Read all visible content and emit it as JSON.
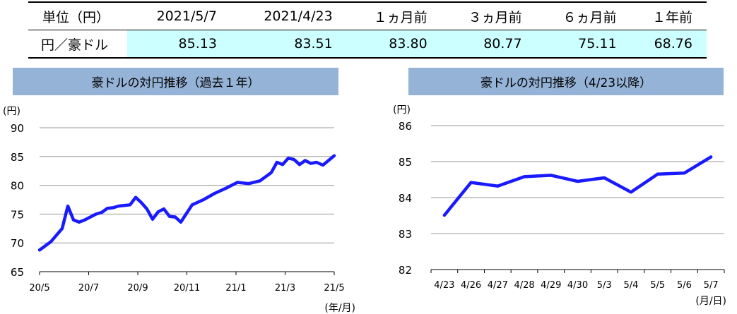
{
  "table": {
    "headers": [
      "単位（円）",
      "2021/5/7",
      "2021/4/23",
      "１ヵ月前",
      "３ヵ月前",
      "６ヵ月前",
      "１年前"
    ],
    "row_label": "円／豪ドル",
    "values": [
      "85.13",
      "83.51",
      "83.80",
      "80.77",
      "75.11",
      "68.76"
    ],
    "highlight_color": "#ccffff"
  },
  "chart_data": [
    {
      "type": "line",
      "title": "豪ドルの対円推移（過去１年）",
      "ylabel": "(円)",
      "xlabel": "(年/月)",
      "ylim": [
        65,
        90
      ],
      "yticks": [
        "90",
        "85",
        "80",
        "75",
        "70",
        "65"
      ],
      "x_tick_labels": [
        "20/5",
        "20/7",
        "20/9",
        "20/11",
        "21/1",
        "21/3",
        "21/5"
      ],
      "grid": true,
      "line_color": "#1a1aff",
      "series": [
        {
          "x": [
            "2020/5/7",
            "2020/5/21",
            "2020/6/4",
            "2020/6/11",
            "2020/6/18",
            "2020/6/25",
            "2020/7/2",
            "2020/7/16",
            "2020/7/23",
            "2020/7/30",
            "2020/8/6",
            "2020/8/13",
            "2020/8/27",
            "2020/9/3",
            "2020/9/10",
            "2020/9/17",
            "2020/9/24",
            "2020/10/1",
            "2020/10/8",
            "2020/10/15",
            "2020/10/22",
            "2020/10/29",
            "2020/11/5",
            "2020/11/12",
            "2020/11/26",
            "2020/12/10",
            "2020/12/24",
            "2021/1/7",
            "2021/1/21",
            "2021/2/4",
            "2021/2/18",
            "2021/2/25",
            "2021/3/4",
            "2021/3/11",
            "2021/3/18",
            "2021/3/25",
            "2021/4/1",
            "2021/4/8",
            "2021/4/15",
            "2021/4/23",
            "2021/5/7"
          ],
          "values": [
            68.76,
            70.2,
            72.5,
            76.4,
            74.0,
            73.6,
            74.0,
            75.0,
            75.3,
            76.0,
            76.1,
            76.4,
            76.6,
            77.9,
            77.0,
            75.9,
            74.1,
            75.4,
            75.9,
            74.6,
            74.5,
            73.6,
            75.11,
            76.6,
            77.5,
            78.6,
            79.5,
            80.5,
            80.3,
            80.77,
            82.2,
            84.0,
            83.6,
            84.7,
            84.5,
            83.6,
            84.3,
            83.8,
            84.0,
            83.51,
            85.13
          ]
        }
      ]
    },
    {
      "type": "line",
      "title": "豪ドルの対円推移（4/23以降）",
      "ylabel": "(円)",
      "xlabel": "(月/日)",
      "ylim": [
        82,
        86
      ],
      "yticks": [
        "86",
        "85",
        "84",
        "83",
        "82"
      ],
      "categories": [
        "4/23",
        "4/26",
        "4/27",
        "4/28",
        "4/29",
        "4/30",
        "5/3",
        "5/4",
        "5/5",
        "5/6",
        "5/7"
      ],
      "grid": true,
      "line_color": "#1a1aff",
      "series": [
        {
          "values": [
            83.51,
            84.42,
            84.32,
            84.58,
            84.62,
            84.45,
            84.55,
            84.15,
            84.65,
            84.68,
            85.13
          ]
        }
      ]
    }
  ]
}
